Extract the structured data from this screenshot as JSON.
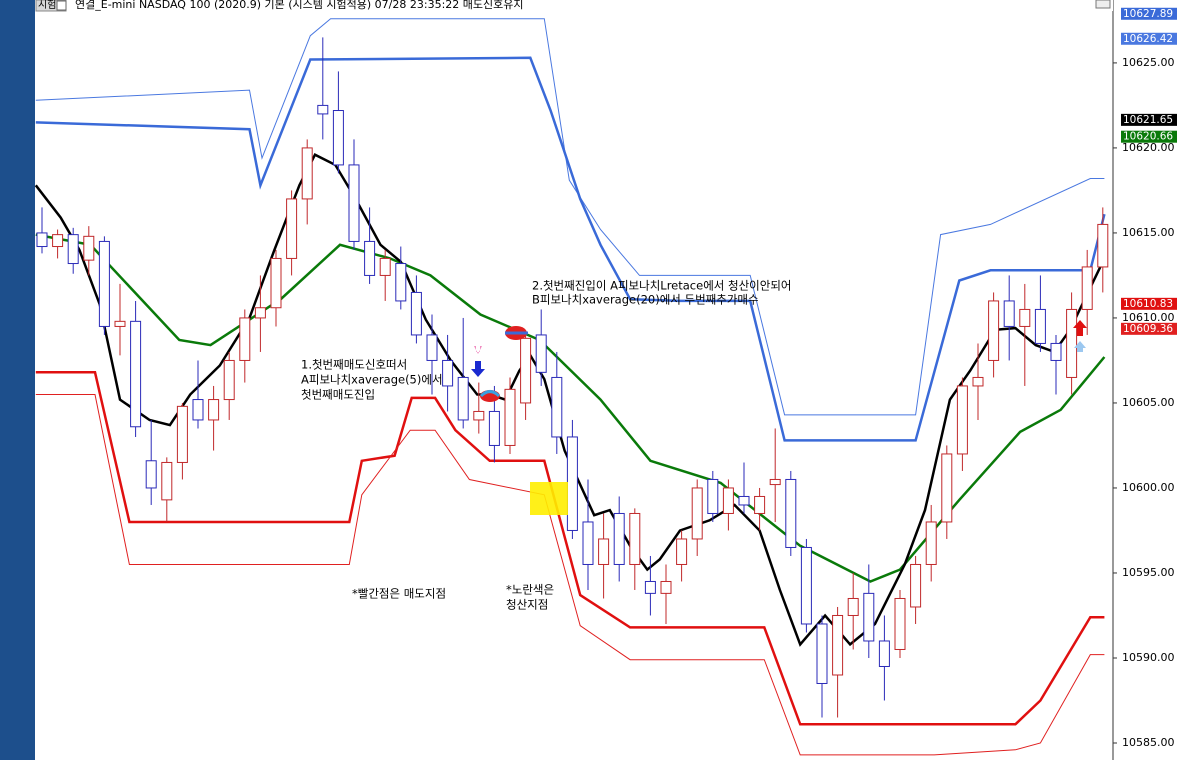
{
  "header": {
    "tab": "시험",
    "title": "연결_E-mini NASDAQ 100 (2020.9) 기본 (시스템 시험적용) 07/28 23:35:22 매도신호유지"
  },
  "chart_data": {
    "type": "candlestick",
    "open": [
      10615.0,
      10614.2,
      10614.9,
      10613.4,
      10614.5,
      10609.5,
      10609.8,
      10601.6,
      10599.3,
      10601.5,
      10605.2,
      10604.0,
      10605.2,
      10607.5,
      10610.0,
      10610.6,
      10613.5,
      10617.0,
      10622.5,
      10622.2,
      10619.0,
      10614.5,
      10612.5,
      10613.2,
      10611.5,
      10609.0,
      10607.5,
      10606.5,
      10604.0,
      10604.5,
      10602.5,
      10605.0,
      10609.0,
      10606.5,
      10603.0,
      10598.0,
      10595.5,
      10598.5,
      10595.5,
      10594.5,
      10593.8,
      10595.5,
      10597.0,
      10600.5,
      10598.5,
      10599.5,
      10598.5,
      10600.2,
      10600.5,
      10596.5,
      10592.0,
      10589.0,
      10592.5,
      10593.8,
      10591.0,
      10590.5,
      10593.0,
      10595.5,
      10598.0,
      10602.0,
      10606.0,
      10607.5,
      10611.0,
      10609.5,
      10610.5,
      10608.5,
      10606.5,
      10610.5,
      10613.0
    ],
    "high": [
      10616.5,
      10615.2,
      10615.3,
      10615.4,
      10614.8,
      10612.0,
      10611.0,
      10604.0,
      10601.8,
      10605.0,
      10607.5,
      10606.0,
      10608.0,
      10610.5,
      10612.5,
      10614.0,
      10617.5,
      10620.5,
      10626.5,
      10624.5,
      10620.5,
      10616.5,
      10614.0,
      10614.2,
      10612.5,
      10610.2,
      10609.0,
      10610.0,
      10606.2,
      10606.0,
      10606.5,
      10609.2,
      10610.5,
      10608.0,
      10604.0,
      10600.5,
      10598.5,
      10599.5,
      10598.8,
      10596.0,
      10595.5,
      10597.5,
      10600.5,
      10601.0,
      10600.5,
      10601.5,
      10600.0,
      10603.5,
      10601.0,
      10597.0,
      10592.5,
      10593.0,
      10595.0,
      10595.5,
      10592.5,
      10594.0,
      10596.0,
      10599.0,
      10602.5,
      10606.5,
      10608.5,
      10611.5,
      10612.5,
      10612.0,
      10612.5,
      10609.0,
      10611.5,
      10614.0,
      10616.5
    ],
    "low": [
      10613.8,
      10613.5,
      10612.6,
      10612.5,
      10609.0,
      10607.8,
      10603.0,
      10599.0,
      10598.0,
      10600.5,
      10603.5,
      10602.2,
      10604.0,
      10606.2,
      10608.0,
      10609.5,
      10612.5,
      10615.5,
      10620.5,
      10618.5,
      10614.0,
      10612.0,
      10611.0,
      10610.5,
      10608.5,
      10605.5,
      10604.5,
      10603.5,
      10603.2,
      10601.5,
      10602.0,
      10604.0,
      10606.0,
      10602.0,
      10597.0,
      10594.0,
      10593.5,
      10594.5,
      10594.0,
      10592.5,
      10592.0,
      10594.5,
      10596.0,
      10598.0,
      10597.5,
      10598.5,
      10597.5,
      10598.0,
      10596.0,
      10591.5,
      10586.5,
      10586.5,
      10590.5,
      10590.0,
      10587.5,
      10590.0,
      10592.0,
      10594.5,
      10597.0,
      10601.0,
      10604.0,
      10606.5,
      10607.5,
      10606.0,
      10608.0,
      10605.5,
      10605.5,
      10609.0,
      10611.5
    ],
    "close": [
      10614.2,
      10614.9,
      10613.2,
      10614.8,
      10609.5,
      10609.8,
      10603.6,
      10600.0,
      10601.5,
      10604.8,
      10604.0,
      10605.2,
      10607.5,
      10610.0,
      10610.6,
      10613.5,
      10617.0,
      10620.0,
      10622.0,
      10619.0,
      10614.5,
      10612.5,
      10613.5,
      10611.0,
      10609.0,
      10607.5,
      10606.0,
      10604.0,
      10604.5,
      10602.5,
      10605.8,
      10608.8,
      10606.8,
      10603.0,
      10597.5,
      10595.5,
      10597.0,
      10595.5,
      10598.5,
      10593.8,
      10594.5,
      10597.0,
      10600.0,
      10598.5,
      10600.0,
      10599.0,
      10599.5,
      10600.5,
      10596.5,
      10592.0,
      10588.5,
      10592.5,
      10593.5,
      10591.0,
      10589.5,
      10593.5,
      10595.5,
      10598.0,
      10602.0,
      10606.0,
      10606.5,
      10611.0,
      10609.5,
      10610.5,
      10608.5,
      10607.5,
      10610.5,
      10613.0,
      10615.5
    ],
    "up_color": "#c0282a",
    "down_color": "#2a2ab8",
    "lines": [
      {
        "color": "#4a78e0",
        "x": [
          -0.4,
          13.3,
          14.1,
          17.2,
          18.5,
          32.2,
          33.8,
          35.8,
          38.3,
          45.4,
          47.6,
          56.0,
          57.6,
          60.8,
          67.2,
          68.1
        ],
        "values": [
          10622.8,
          10623.4,
          10619.4,
          10626.6,
          10627.6,
          10627.6,
          10618.1,
          10615.2,
          10612.5,
          10612.5,
          10604.3,
          10604.3,
          10614.9,
          10615.5,
          10618.2,
          10618.2
        ]
      },
      {
        "color": "#3a6ad8",
        "x": [
          -0.4,
          13.3,
          14.0,
          17.2,
          31.3,
          32.6,
          34.5,
          35.8,
          37.7,
          40.9,
          45.4,
          47.6,
          56.0,
          58.8,
          60.8,
          67.2,
          68.1
        ],
        "values": [
          10621.5,
          10621.1,
          10617.8,
          10625.2,
          10625.3,
          10622.2,
          10617.0,
          10614.3,
          10611.1,
          10611.0,
          10611.0,
          10602.8,
          10602.8,
          10612.2,
          10612.8,
          10612.8,
          10616.1
        ]
      },
      {
        "color": "#e01010",
        "x": [
          -0.4,
          3.4,
          5.6,
          19.7,
          20.5,
          22.6,
          23.7,
          25.2,
          26.5,
          28.7,
          32.2,
          34.5,
          37.7,
          46.3,
          48.6,
          62.4,
          64.0,
          67.2,
          68.1
        ],
        "values": [
          10606.8,
          10606.8,
          10598.0,
          10598.0,
          10601.6,
          10601.9,
          10605.3,
          10605.3,
          10603.4,
          10601.6,
          10601.6,
          10593.7,
          10591.8,
          10591.8,
          10586.1,
          10586.1,
          10587.5,
          10592.4,
          10592.4
        ]
      },
      {
        "color": "#e02020",
        "x": [
          -0.4,
          3.4,
          5.6,
          19.7,
          20.5,
          23.6,
          25.2,
          27.4,
          32.2,
          34.5,
          37.7,
          46.3,
          48.6,
          57.2,
          62.4,
          64.0,
          67.2,
          68.1
        ],
        "values": [
          10605.5,
          10605.5,
          10595.5,
          10595.5,
          10599.6,
          10603.4,
          10603.4,
          10600.5,
          10599.6,
          10591.9,
          10589.9,
          10589.9,
          10584.3,
          10584.3,
          10584.6,
          10585.0,
          10590.2,
          10590.2
        ]
      },
      {
        "color": "#0a7a0a",
        "x": [
          -0.4,
          3.1,
          8.8,
          10.8,
          15.3,
          19.1,
          22.3,
          24.9,
          28.1,
          31.9,
          35.8,
          39.0,
          43.5,
          48.6,
          53.1,
          55.0,
          58.8,
          62.7,
          65.3,
          68.1
        ],
        "values": [
          10614.9,
          10614.3,
          10608.7,
          10608.4,
          10611.1,
          10614.3,
          10613.5,
          10612.5,
          10610.2,
          10608.7,
          10605.2,
          10601.6,
          10600.3,
          10596.6,
          10594.5,
          10595.2,
          10599.3,
          10603.3,
          10604.6,
          10607.7
        ]
      },
      {
        "color": "#000000",
        "x": [
          -0.4,
          1.2,
          2.4,
          3.7,
          5.0,
          6.9,
          8.2,
          9.5,
          11.4,
          13.3,
          14.9,
          16.5,
          17.5,
          18.8,
          20.1,
          21.7,
          23.0,
          24.6,
          26.2,
          27.9,
          28.7,
          29.7,
          30.6,
          31.3,
          32.2,
          33.5,
          35.4,
          36.4,
          37.7,
          38.8,
          39.6,
          40.9,
          42.8,
          44.4,
          46.0,
          47.3,
          48.6,
          50.2,
          51.8,
          53.4,
          55.3,
          56.6,
          58.2,
          59.5,
          61.1,
          62.4,
          63.7,
          64.9,
          65.9,
          68.1
        ],
        "values": [
          10617.8,
          10615.9,
          10614.0,
          10610.8,
          10605.2,
          10604.0,
          10603.7,
          10605.5,
          10607.2,
          10610.0,
          10614.0,
          10617.8,
          10619.6,
          10619.0,
          10617.0,
          10614.3,
          10613.3,
          10609.9,
          10607.5,
          10605.5,
          10605.5,
          10605.2,
          10606.9,
          10607.8,
          10606.4,
          10602.2,
          10598.4,
          10598.7,
          10596.6,
          10595.2,
          10595.8,
          10597.5,
          10598.1,
          10599.0,
          10597.5,
          10594.0,
          10590.8,
          10592.5,
          10590.8,
          10592.0,
          10595.5,
          10598.7,
          10605.2,
          10606.9,
          10609.3,
          10609.4,
          10608.4,
          10608.0,
          10609.3,
          10613.5
        ]
      }
    ],
    "ylim": [
      10584,
      10628.7
    ],
    "yticks": [
      {
        "value": 10585,
        "label": "10585.00"
      },
      {
        "value": 10590,
        "label": "10590.00"
      },
      {
        "value": 10595,
        "label": "10595.00"
      },
      {
        "value": 10600,
        "label": "10600.00"
      },
      {
        "value": 10605,
        "label": "10605.00"
      },
      {
        "value": 10610,
        "label": "10610.00"
      },
      {
        "value": 10615,
        "label": "10615.00"
      },
      {
        "value": 10620,
        "label": "10620.00"
      },
      {
        "value": 10625,
        "label": "10625.00"
      }
    ],
    "price_labels": [
      {
        "value": 10627.89,
        "color": "#3a6ad8"
      },
      {
        "value": 10626.42,
        "color": "#4a78e0"
      },
      {
        "value": 10621.65,
        "color": "#000000"
      },
      {
        "value": 10620.66,
        "color": "#0a7a0a"
      },
      {
        "value": 10610.83,
        "color": "#e01010"
      },
      {
        "value": 10609.36,
        "color": "#e02020"
      }
    ],
    "annotations": [
      "1.첫번째매도신호떠서",
      "A피보나치xaverage(5)에서",
      "첫번째매도진입",
      "2.첫번째진입이 A피보나치Lretace에서 청산이안되어",
      "B피보나치xaverage(20)에서 두번째추가매수",
      "*빨간점은 매도지점",
      "*노란색은",
      "청산지점"
    ]
  }
}
